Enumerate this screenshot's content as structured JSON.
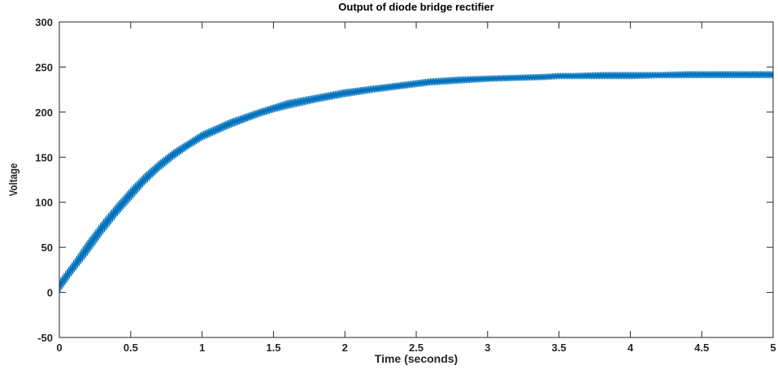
{
  "chart_data": {
    "type": "line",
    "title": "Output of diode bridge rectifier",
    "xlabel": "Time (seconds)",
    "ylabel": "Voltage",
    "xlim": [
      0,
      5
    ],
    "ylim": [
      -50,
      300
    ],
    "xticks": [
      "0",
      "0.5",
      "1",
      "1.5",
      "2",
      "2.5",
      "3",
      "3.5",
      "4",
      "4.5",
      "5"
    ],
    "yticks": [
      "-50",
      "0",
      "50",
      "100",
      "150",
      "200",
      "250",
      "300"
    ],
    "grid": false,
    "legend": false,
    "series": [
      {
        "color": "#0072BD",
        "x": [
          0,
          0.1,
          0.2,
          0.3,
          0.4,
          0.5,
          0.6,
          0.7,
          0.8,
          0.9,
          1.0,
          1.2,
          1.4,
          1.5,
          1.6,
          1.8,
          2.0,
          2.2,
          2.4,
          2.5,
          2.6,
          2.8,
          3.0,
          3.2,
          3.4,
          3.5,
          3.6,
          3.8,
          4.0,
          4.2,
          4.4,
          4.5,
          4.6,
          4.8,
          5.0
        ],
        "upper": [
          14,
          35,
          58,
          79,
          98,
          116,
          132,
          146,
          158,
          168,
          178,
          192,
          203,
          208,
          213,
          219,
          225,
          229,
          233,
          235,
          237,
          239,
          240,
          241,
          242,
          243,
          243,
          244,
          244,
          244,
          245,
          245,
          245,
          245,
          245
        ],
        "lower": [
          0,
          22,
          42,
          64,
          84,
          102,
          120,
          135,
          148,
          159,
          169,
          183,
          195,
          200,
          204,
          211,
          217,
          222,
          226,
          228,
          230,
          232,
          234,
          235,
          236,
          237,
          237,
          237,
          237,
          238,
          238,
          238,
          238,
          238,
          238
        ]
      }
    ]
  }
}
